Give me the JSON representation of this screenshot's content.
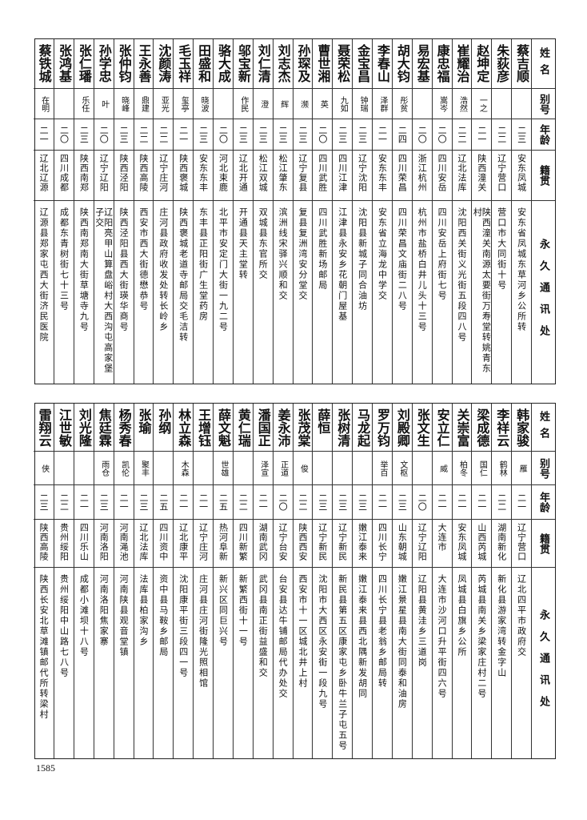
{
  "headers": {
    "name": "姓名",
    "alias": "别号",
    "age": "年龄",
    "native": "籍贯",
    "address": "永久通讯处"
  },
  "top_table": [
    {
      "name": "蔡吉顺",
      "alias": "",
      "age": "二三",
      "native": "安东凤城",
      "address": "安东省凤城东草河乡公所转"
    },
    {
      "name": "朱荻彦",
      "alias": "",
      "age": "二二",
      "native": "辽宁营口",
      "address": "营口市大同街十号"
    },
    {
      "name": "赵坤定",
      "alias": "一之",
      "age": "二一",
      "native": "陕西潼关",
      "address": "陕西潼关南源太要街万寿堂转姚青东村"
    },
    {
      "name": "崔耀治",
      "alias": "浩然",
      "age": "二二",
      "native": "辽北法库",
      "address": "沈阳西关街义光街五段四八号"
    },
    {
      "name": "康忠福",
      "alias": "嵩岑",
      "age": "二〇",
      "native": "四川安岳",
      "address": "四川安岳上府街七号"
    },
    {
      "name": "易宏基",
      "alias": "",
      "age": "二〇",
      "native": "浙江杭州",
      "address": "杭州市盐桥白井儿头十三号"
    },
    {
      "name": "胡大钧",
      "alias": "彤贫",
      "age": "二四",
      "native": "四川荣昌",
      "address": "四川荣昌文庙街二八号"
    },
    {
      "name": "李春山",
      "alias": "泽群",
      "age": "二一",
      "native": "安东东丰",
      "address": "安东省立海龙中学交"
    },
    {
      "name": "金宝昌",
      "alias": "钟瑞",
      "age": "二三",
      "native": "辽宁沈阳",
      "address": "沈阳县新城子同合油坊"
    },
    {
      "name": "聂荣松",
      "alias": "九如",
      "age": "二三",
      "native": "四川江津",
      "address": "江津县永安乡花朝门屋基"
    },
    {
      "name": "曹世湘",
      "alias": "英",
      "age": "二〇",
      "native": "四川武胜",
      "address": "四川武胜新场邮局"
    },
    {
      "name": "孙琛及",
      "alias": "濒",
      "age": "二三",
      "native": "辽宁复县",
      "address": "复县复洲湾安分堂交"
    },
    {
      "name": "刘志杰",
      "alias": "辉",
      "age": "二三",
      "native": "松江肇东",
      "address": "滨洲线宋驿兴顺和交"
    },
    {
      "name": "刘仁清",
      "alias": "澄",
      "age": "二三",
      "native": "松江双城",
      "address": "双城县东官所交"
    },
    {
      "name": "邬宝新",
      "alias": "作民",
      "age": "二三",
      "native": "辽北开通",
      "address": "开通县天主堂转"
    },
    {
      "name": "骆大成",
      "alias": "",
      "age": "二〇",
      "native": "河北束鹿",
      "address": "北平市安定门大街一九二号"
    },
    {
      "name": "田盛和",
      "alias": "晓波",
      "age": "二三",
      "native": "安东东丰",
      "address": "东丰县正阳街广生堂药房"
    },
    {
      "name": "毛玉祥",
      "alias": "玺亭",
      "age": "二一",
      "native": "陕西褒城",
      "address": "陕西褒城老道寺邮局交毛洁转"
    },
    {
      "name": "沈颜涛",
      "alias": "亚光",
      "age": "二二",
      "native": "辽宁庄河",
      "address": "庄河县政府收发处转长岭乡"
    },
    {
      "name": "王永善",
      "alias": "鼎建",
      "age": "二二",
      "native": "陕西高陵",
      "address": "西安市西大街德懋恭号"
    },
    {
      "name": "张仲钧",
      "alias": "晓峰",
      "age": "二三",
      "native": "陕西泾阳",
      "address": "陕西泾阳县西大街瑛华商号"
    },
    {
      "name": "孙学忠",
      "alias": "叶",
      "age": "二〇",
      "native": "辽宁辽阳",
      "address": "辽阳亮甲山算盘峪村大西沟屯高家堡子交"
    },
    {
      "name": "张仁璠",
      "alias": "乐任",
      "age": "二三",
      "native": "陕西南郑",
      "address": "陕西南郑南大街草塘寺九号"
    },
    {
      "name": "张鸿基",
      "alias": "",
      "age": "二〇",
      "native": "四川成都",
      "address": "成都东青树街七十三号"
    },
    {
      "name": "蔡铁城",
      "alias": "在明",
      "age": "二一",
      "native": "辽北辽源",
      "address": "辽源县郑家屯西大街济民医院"
    }
  ],
  "bottom_table": [
    {
      "name": "韩家骏",
      "alias": "雁",
      "age": "二一",
      "native": "辽宁营口",
      "address": "辽北四平市政府交"
    },
    {
      "name": "李祥云",
      "alias": "鹤林",
      "age": "二二",
      "native": "湖南新化",
      "address": "新化县游家湾转金字山"
    },
    {
      "name": "梁成德",
      "alias": "国仁",
      "age": "二一",
      "native": "山西芮城",
      "address": "芮城县南关乡梁家庄村二号"
    },
    {
      "name": "关崇富",
      "alias": "柏冬",
      "age": "二一",
      "native": "安东凤城",
      "address": "凤城县白旗乡公所"
    },
    {
      "name": "安立仁",
      "alias": "威",
      "age": "二一",
      "native": "大连市",
      "address": "大连市沙河口升平街四六号"
    },
    {
      "name": "张文生",
      "alias": "",
      "age": "二〇",
      "native": "辽宁辽阳",
      "address": "辽阳县黄洼乡三道岗"
    },
    {
      "name": "刘殿卿",
      "alias": "文枢",
      "age": "二三",
      "native": "山东朝城",
      "address": "嫩江景星县南大街同泰和油房"
    },
    {
      "name": "罗万钧",
      "alias": "举百",
      "age": "二一",
      "native": "四川长宁",
      "address": "四川长宁县老翁乡邮局转"
    },
    {
      "name": "马龙起",
      "alias": "",
      "age": "二三",
      "native": "嫩江泰来",
      "address": "嫩江泰来县西北隅新发胡同"
    },
    {
      "name": "张树清",
      "alias": "",
      "age": "二三",
      "native": "辽宁新民",
      "address": "新民县第五区康家屯乡卧牛兰子屯五号"
    },
    {
      "name": "薛恒",
      "alias": "",
      "age": "二三",
      "native": "辽宁新民",
      "address": "沈阳市大西区永安街一段九号"
    },
    {
      "name": "张茂棠",
      "alias": "俊",
      "age": "二二",
      "native": "陕西西安",
      "address": "西安市十一区城北井上村"
    },
    {
      "name": "姜永沛",
      "alias": "正道",
      "age": "二〇",
      "native": "辽宁台安",
      "address": "台安县达牛铺邮局代办处交"
    },
    {
      "name": "潘国正",
      "alias": "泽宣",
      "age": "二一",
      "native": "湖南武冈",
      "address": "武冈县南正街益盛和交"
    },
    {
      "name": "黄仁瑞",
      "alias": "",
      "age": "二二",
      "native": "四川新繁",
      "address": "新繁西街十一号"
    },
    {
      "name": "薛文魁",
      "alias": "世雄",
      "age": "二五",
      "native": "热河阜新",
      "address": "新兴区同巨兴号"
    },
    {
      "name": "王增钰",
      "alias": "",
      "age": "二一",
      "native": "辽宁庄河",
      "address": "庄河县庄河街隆光照相馆"
    },
    {
      "name": "林立森",
      "alias": "木森",
      "age": "二一",
      "native": "辽北康平",
      "address": "沈阳康平街三段四一号"
    },
    {
      "name": "孙纲",
      "alias": "",
      "age": "二五",
      "native": "四川资中",
      "address": "资中县马鞍乡邮局"
    },
    {
      "name": "张瑜",
      "alias": "聚丰",
      "age": "二三",
      "native": "辽北法库",
      "address": "法库县柏家沟乡"
    },
    {
      "name": "杨秀春",
      "alias": "凯伦",
      "age": "二一",
      "native": "河南渑池",
      "address": "河南陕县观音堂镇"
    },
    {
      "name": "焦廷霖",
      "alias": "雨仓",
      "age": "二三",
      "native": "河南洛阳",
      "address": "河南洛阳焦家寨"
    },
    {
      "name": "刘光隆",
      "alias": "",
      "age": "二一",
      "native": "四川乐山",
      "address": "成都小滩坝十八号"
    },
    {
      "name": "江世敏",
      "alias": "",
      "age": "二二",
      "native": "贵州绥阳",
      "address": "贵州绥阳中山路七八号"
    },
    {
      "name": "雷翔云",
      "alias": "侠",
      "age": "二三",
      "native": "陕西高陵",
      "address": "陕西长安北草滩镇邮代所转梁村"
    }
  ],
  "page_number": "1585"
}
